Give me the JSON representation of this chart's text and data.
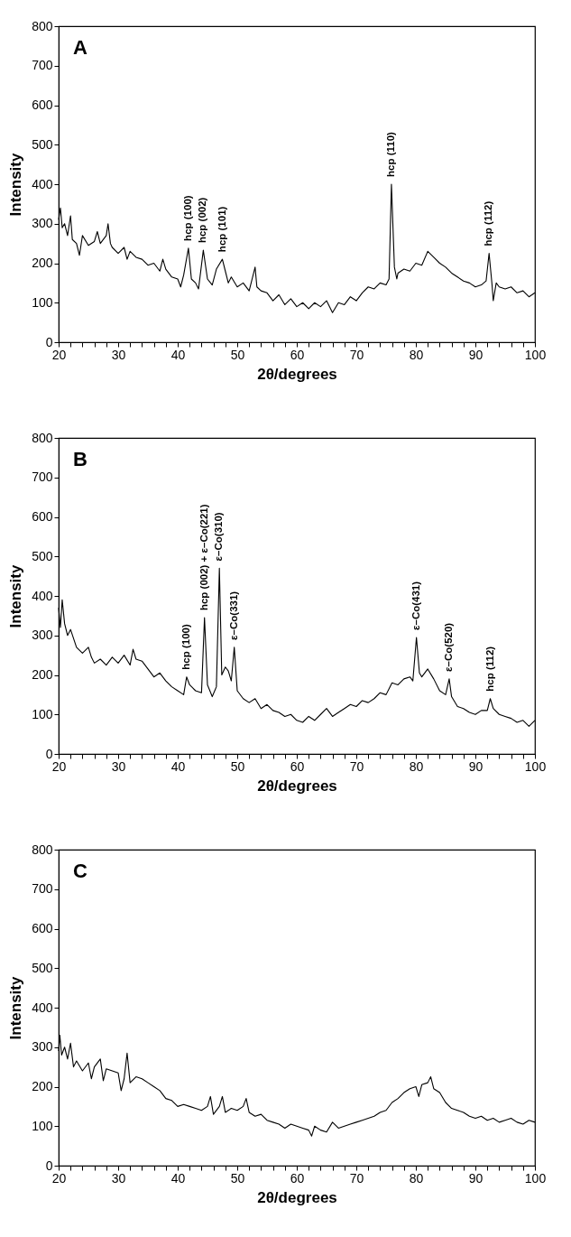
{
  "chart_data": [
    {
      "type": "line",
      "xlabel": "2θ/degrees",
      "ylabel": "Intensity",
      "color": "#000000",
      "annotations": [
        "A",
        {
          "text": "hcp (100)",
          "x": 41.8,
          "y": 238
        },
        {
          "text": "hcp (002)",
          "x": 44.3,
          "y": 233
        },
        {
          "text": "hcp (101)",
          "x": 47.5,
          "y": 210
        },
        {
          "text": "hcp (110)",
          "x": 75.9,
          "y": 400
        },
        {
          "text": "hcp (112)",
          "x": 92.3,
          "y": 225
        }
      ],
      "x": [
        20,
        20.3,
        20.6,
        21,
        21.5,
        22,
        22.3,
        23,
        23.5,
        24,
        25,
        26,
        26.5,
        27,
        28,
        28.3,
        28.7,
        29,
        30,
        31,
        31.5,
        32,
        33,
        34,
        35,
        36,
        37,
        37.5,
        38,
        39,
        40,
        40.5,
        41,
        41.8,
        42.3,
        43,
        43.5,
        44.3,
        45,
        45.8,
        46.5,
        47.5,
        48,
        48.5,
        49,
        50,
        51,
        52,
        53,
        53.3,
        54,
        55,
        56,
        57,
        58,
        59,
        60,
        61,
        62,
        63,
        64,
        65,
        66,
        67,
        68,
        69,
        70,
        71,
        72,
        73,
        74,
        75,
        75.5,
        75.9,
        76.4,
        76.8,
        77,
        78,
        79,
        80,
        81,
        82,
        83,
        84,
        85,
        86,
        87,
        88,
        89,
        90,
        91,
        91.8,
        92.3,
        92.8,
        93,
        93.5,
        94,
        95,
        96,
        97,
        98,
        99,
        100
      ],
      "values": [
        310,
        340,
        290,
        300,
        270,
        320,
        260,
        250,
        220,
        270,
        245,
        255,
        280,
        250,
        270,
        300,
        250,
        240,
        225,
        240,
        210,
        230,
        215,
        210,
        195,
        200,
        180,
        210,
        185,
        165,
        160,
        140,
        170,
        238,
        160,
        150,
        135,
        233,
        160,
        145,
        185,
        210,
        180,
        150,
        165,
        140,
        150,
        130,
        190,
        140,
        130,
        125,
        105,
        120,
        95,
        110,
        90,
        100,
        85,
        100,
        90,
        105,
        75,
        100,
        95,
        115,
        105,
        125,
        140,
        135,
        150,
        145,
        160,
        400,
        190,
        160,
        175,
        185,
        180,
        200,
        195,
        230,
        215,
        200,
        190,
        175,
        165,
        155,
        150,
        140,
        145,
        155,
        225,
        145,
        105,
        150,
        140,
        135,
        140,
        125,
        130,
        115,
        125
      ],
      "xlim": [
        20,
        100
      ],
      "ylim": [
        0,
        800
      ],
      "yticks": [
        0,
        100,
        200,
        300,
        400,
        500,
        600,
        700,
        800
      ],
      "xticks": [
        20,
        {
          "value": 22,
          "label": null
        },
        {
          "value": 24,
          "label": null
        },
        {
          "value": 26,
          "label": null
        },
        {
          "value": 28,
          "label": null
        },
        30,
        {
          "value": 32,
          "label": null
        },
        {
          "value": 34,
          "label": null
        },
        {
          "value": 36,
          "label": null
        },
        {
          "value": 38,
          "label": null
        },
        40,
        {
          "value": 42,
          "label": null
        },
        {
          "value": 44,
          "label": null
        },
        {
          "value": 46,
          "label": null
        },
        {
          "value": 48,
          "label": null
        },
        50,
        {
          "value": 52,
          "label": null
        },
        {
          "value": 54,
          "label": null
        },
        {
          "value": 56,
          "label": null
        },
        {
          "value": 58,
          "label": null
        },
        60,
        {
          "value": 62,
          "label": null
        },
        {
          "value": 64,
          "label": null
        },
        {
          "value": 66,
          "label": null
        },
        {
          "value": 68,
          "label": null
        },
        70,
        {
          "value": 72,
          "label": null
        },
        {
          "value": 74,
          "label": null
        },
        {
          "value": 76,
          "label": null
        },
        {
          "value": 78,
          "label": null
        },
        80,
        {
          "value": 82,
          "label": null
        },
        {
          "value": 84,
          "label": null
        },
        {
          "value": 86,
          "label": null
        },
        {
          "value": 88,
          "label": null
        },
        90,
        {
          "value": 92,
          "label": null
        },
        {
          "value": 94,
          "label": null
        },
        {
          "value": 96,
          "label": null
        },
        {
          "value": 98,
          "label": null
        },
        100
      ]
    },
    {
      "type": "line",
      "xlabel": "2θ/degrees",
      "ylabel": "Intensity",
      "color": "#000000",
      "annotations": [
        "B",
        {
          "text": "hcp (100)",
          "x": 41.5,
          "y": 195
        },
        {
          "text": "hcp (002) + ε–Co(221)",
          "x": 44.5,
          "y": 345
        },
        {
          "text": "ε–Co(310)",
          "x": 47,
          "y": 470
        },
        {
          "text": "ε–Co(331)",
          "x": 49.5,
          "y": 270
        },
        {
          "text": "ε–Co(431)",
          "x": 80.1,
          "y": 295
        },
        {
          "text": "ε–Co(520)",
          "x": 85.6,
          "y": 190
        },
        {
          "text": "hcp (112)",
          "x": 92.5,
          "y": 140
        }
      ],
      "x": [
        20,
        20.3,
        20.6,
        21,
        21.5,
        22,
        23,
        24,
        25,
        25.5,
        26,
        27,
        28,
        29,
        30,
        31,
        32,
        32.5,
        33,
        34,
        35,
        36,
        37,
        38,
        39,
        40,
        41,
        41.5,
        42,
        43,
        44,
        44.5,
        45,
        45.8,
        46.5,
        47,
        47.4,
        48,
        48.5,
        49,
        49.5,
        50,
        51,
        52,
        53,
        54,
        55,
        56,
        57,
        58,
        59,
        60,
        61,
        62,
        63,
        64,
        65,
        66,
        67,
        68,
        69,
        70,
        71,
        72,
        73,
        74,
        75,
        76,
        77,
        78,
        79,
        79.5,
        80.1,
        80.6,
        81,
        82,
        83,
        84,
        85,
        85.6,
        86,
        87,
        88,
        89,
        90,
        91,
        92,
        92.5,
        93,
        94,
        95,
        96,
        97,
        98,
        99,
        100
      ],
      "values": [
        370,
        320,
        390,
        330,
        300,
        315,
        270,
        255,
        270,
        245,
        230,
        240,
        225,
        245,
        230,
        250,
        225,
        265,
        240,
        235,
        215,
        195,
        205,
        185,
        170,
        160,
        150,
        195,
        175,
        160,
        155,
        345,
        175,
        145,
        170,
        470,
        200,
        220,
        210,
        185,
        270,
        160,
        140,
        130,
        140,
        115,
        125,
        110,
        105,
        95,
        100,
        85,
        80,
        95,
        85,
        100,
        115,
        95,
        105,
        115,
        125,
        120,
        135,
        130,
        140,
        155,
        150,
        180,
        175,
        190,
        195,
        185,
        295,
        205,
        195,
        215,
        190,
        160,
        150,
        190,
        145,
        120,
        115,
        105,
        100,
        110,
        110,
        140,
        115,
        100,
        95,
        90,
        80,
        85,
        70,
        85
      ],
      "xlim": [
        20,
        100
      ],
      "ylim": [
        0,
        800
      ],
      "yticks": [
        0,
        100,
        200,
        300,
        400,
        500,
        600,
        700,
        800
      ],
      "xticks": [
        20,
        {
          "value": 22,
          "label": null
        },
        {
          "value": 24,
          "label": null
        },
        {
          "value": 26,
          "label": null
        },
        {
          "value": 28,
          "label": null
        },
        30,
        {
          "value": 32,
          "label": null
        },
        {
          "value": 34,
          "label": null
        },
        {
          "value": 36,
          "label": null
        },
        {
          "value": 38,
          "label": null
        },
        40,
        {
          "value": 42,
          "label": null
        },
        {
          "value": 44,
          "label": null
        },
        {
          "value": 46,
          "label": null
        },
        {
          "value": 48,
          "label": null
        },
        50,
        {
          "value": 52,
          "label": null
        },
        {
          "value": 54,
          "label": null
        },
        {
          "value": 56,
          "label": null
        },
        {
          "value": 58,
          "label": null
        },
        60,
        {
          "value": 62,
          "label": null
        },
        {
          "value": 64,
          "label": null
        },
        {
          "value": 66,
          "label": null
        },
        {
          "value": 68,
          "label": null
        },
        70,
        {
          "value": 72,
          "label": null
        },
        {
          "value": 74,
          "label": null
        },
        {
          "value": 76,
          "label": null
        },
        {
          "value": 78,
          "label": null
        },
        80,
        {
          "value": 82,
          "label": null
        },
        {
          "value": 84,
          "label": null
        },
        {
          "value": 86,
          "label": null
        },
        {
          "value": 88,
          "label": null
        },
        90,
        {
          "value": 92,
          "label": null
        },
        {
          "value": 94,
          "label": null
        },
        {
          "value": 96,
          "label": null
        },
        {
          "value": 98,
          "label": null
        },
        100
      ]
    },
    {
      "type": "line",
      "xlabel": "2θ/degrees",
      "ylabel": "Intensity",
      "color": "#000000",
      "annotations": [
        "C"
      ],
      "x": [
        20,
        20.2,
        20.5,
        21,
        21.5,
        22,
        22.5,
        23,
        24,
        25,
        25.5,
        26,
        27,
        27.5,
        28,
        29,
        30,
        30.5,
        31,
        31.5,
        32,
        33,
        34,
        35,
        36,
        37,
        38,
        39,
        40,
        41,
        42,
        43,
        44,
        45,
        45.5,
        46,
        47,
        47.5,
        48,
        49,
        50,
        51,
        51.5,
        52,
        53,
        54,
        55,
        56,
        57,
        58,
        59,
        60,
        61,
        62,
        62.5,
        63,
        64,
        65,
        66,
        67,
        68,
        69,
        70,
        71,
        72,
        73,
        74,
        75,
        76,
        77,
        78,
        79,
        80,
        80.5,
        81,
        82,
        82.5,
        83,
        84,
        85,
        86,
        87,
        88,
        89,
        90,
        91,
        92,
        93,
        94,
        95,
        96,
        97,
        98,
        99,
        100
      ],
      "values": [
        290,
        330,
        280,
        300,
        270,
        310,
        250,
        265,
        240,
        260,
        220,
        250,
        270,
        215,
        245,
        240,
        235,
        190,
        220,
        285,
        210,
        225,
        220,
        210,
        200,
        190,
        170,
        165,
        150,
        155,
        150,
        145,
        140,
        150,
        175,
        130,
        150,
        175,
        135,
        145,
        140,
        150,
        170,
        135,
        125,
        130,
        115,
        110,
        105,
        95,
        105,
        100,
        95,
        90,
        75,
        100,
        90,
        85,
        110,
        95,
        100,
        105,
        110,
        115,
        120,
        125,
        135,
        140,
        160,
        170,
        185,
        195,
        200,
        175,
        205,
        210,
        225,
        195,
        185,
        160,
        145,
        140,
        135,
        125,
        120,
        125,
        115,
        120,
        110,
        115,
        120,
        110,
        105,
        115,
        110
      ],
      "xlim": [
        20,
        100
      ],
      "ylim": [
        0,
        800
      ],
      "yticks": [
        0,
        100,
        200,
        300,
        400,
        500,
        600,
        700,
        800
      ],
      "xticks": [
        20,
        {
          "value": 22,
          "label": null
        },
        {
          "value": 24,
          "label": null
        },
        {
          "value": 26,
          "label": null
        },
        {
          "value": 28,
          "label": null
        },
        30,
        {
          "value": 32,
          "label": null
        },
        {
          "value": 34,
          "label": null
        },
        {
          "value": 36,
          "label": null
        },
        {
          "value": 38,
          "label": null
        },
        40,
        {
          "value": 42,
          "label": null
        },
        {
          "value": 44,
          "label": null
        },
        {
          "value": 46,
          "label": null
        },
        {
          "value": 48,
          "label": null
        },
        50,
        {
          "value": 52,
          "label": null
        },
        {
          "value": 54,
          "label": null
        },
        {
          "value": 56,
          "label": null
        },
        {
          "value": 58,
          "label": null
        },
        60,
        {
          "value": 62,
          "label": null
        },
        {
          "value": 64,
          "label": null
        },
        {
          "value": 66,
          "label": null
        },
        {
          "value": 68,
          "label": null
        },
        70,
        {
          "value": 72,
          "label": null
        },
        {
          "value": 74,
          "label": null
        },
        {
          "value": 76,
          "label": null
        },
        {
          "value": 78,
          "label": null
        },
        80,
        {
          "value": 82,
          "label": null
        },
        {
          "value": 84,
          "label": null
        },
        {
          "value": 86,
          "label": null
        },
        {
          "value": 88,
          "label": null
        },
        90,
        {
          "value": 92,
          "label": null
        },
        {
          "value": 94,
          "label": null
        },
        {
          "value": 96,
          "label": null
        },
        {
          "value": 98,
          "label": null
        },
        100
      ]
    }
  ]
}
